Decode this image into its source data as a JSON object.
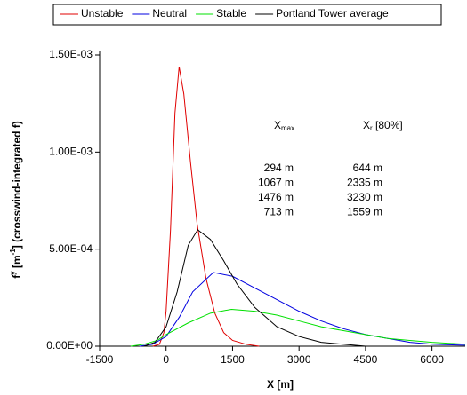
{
  "chart_data": {
    "type": "line",
    "xlabel": "X [m]",
    "ylabel": {
      "base": "f",
      "sup": "y",
      "mid": " [m",
      "sup2": "-1",
      "rest": "] (crosswind-integrated f)"
    },
    "xlim": [
      -1500,
      6750
    ],
    "xticks": [
      -1500,
      0,
      1500,
      3000,
      4500,
      6000
    ],
    "ylim": [
      0,
      0.0015
    ],
    "yticks": [
      {
        "value": 0,
        "label": "0.00E+00"
      },
      {
        "value": 0.0005,
        "label": "5.00E-04"
      },
      {
        "value": 0.001,
        "label": "1.00E-03"
      },
      {
        "value": 0.0015,
        "label": "1.50E-03"
      }
    ],
    "series": [
      {
        "name": "Unstable",
        "color": "#e00000",
        "x": [
          -300,
          -150,
          -50,
          0,
          100,
          200,
          294,
          400,
          550,
          700,
          900,
          1100,
          1300,
          1500,
          1800,
          2100
        ],
        "values": [
          0,
          1e-05,
          7e-05,
          0.00018,
          0.0006,
          0.0012,
          0.00144,
          0.0013,
          0.00095,
          0.00063,
          0.00035,
          0.00017,
          7e-05,
          3e-05,
          1e-05,
          0
        ]
      },
      {
        "name": "Neutral",
        "color": "#0000e0",
        "x": [
          -600,
          -300,
          0,
          300,
          600,
          1067,
          1500,
          2000,
          2500,
          3000,
          3500,
          4000,
          4500,
          5000,
          5500,
          6000,
          6750
        ],
        "values": [
          0,
          1e-05,
          5e-05,
          0.00015,
          0.00028,
          0.00038,
          0.00036,
          0.0003,
          0.00024,
          0.00018,
          0.00013,
          9e-05,
          6e-05,
          4e-05,
          2e-05,
          1e-05,
          5e-06
        ]
      },
      {
        "name": "Stable",
        "color": "#00e000",
        "x": [
          -800,
          -500,
          -200,
          0,
          500,
          1000,
          1476,
          2000,
          2500,
          3000,
          3500,
          4000,
          4500,
          5000,
          5500,
          6000,
          6750
        ],
        "values": [
          0,
          1e-05,
          3e-05,
          6e-05,
          0.00012,
          0.00017,
          0.00019,
          0.00018,
          0.00016,
          0.00013,
          0.0001,
          8e-05,
          6e-05,
          4e-05,
          3e-05,
          2e-05,
          1e-05
        ]
      },
      {
        "name": "Portland Tower average",
        "color": "#000000",
        "x": [
          -500,
          -250,
          0,
          250,
          500,
          713,
          1000,
          1300,
          1600,
          2000,
          2500,
          3000,
          3500,
          4000,
          4500
        ],
        "values": [
          0,
          2e-05,
          0.0001,
          0.00028,
          0.00052,
          0.0006,
          0.00055,
          0.00044,
          0.00032,
          0.0002,
          0.0001,
          5e-05,
          2e-05,
          1e-05,
          0
        ]
      }
    ],
    "annotation": {
      "header": [
        {
          "main": "X",
          "sub": "max"
        },
        {
          "main": "X",
          "sub": "r",
          "suffix": " [80%]"
        }
      ],
      "rows": [
        [
          "294 m",
          "644 m"
        ],
        [
          "1067 m",
          "2335 m"
        ],
        [
          "1476 m",
          "3230 m"
        ],
        [
          "713 m",
          "1559 m"
        ]
      ]
    },
    "legend": "top"
  }
}
